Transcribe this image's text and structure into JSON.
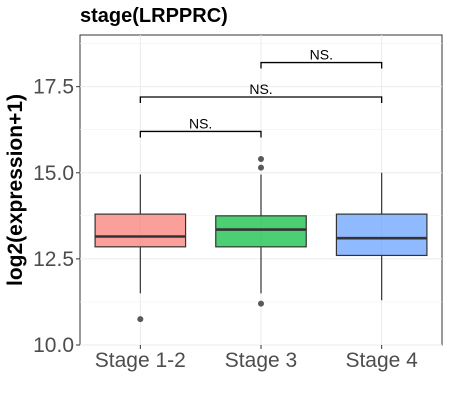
{
  "chart_data": {
    "type": "box",
    "title": "stage(LRPPRC)",
    "xlabel": "",
    "ylabel": "log2(expression+1)",
    "ylim": [
      10.0,
      19.0
    ],
    "yticks": [
      10.0,
      12.5,
      15.0,
      17.5
    ],
    "ytick_labels": [
      "10.0",
      "12.5",
      "15.0",
      "17.5"
    ],
    "grid": true,
    "legend": "none",
    "categories": [
      "Stage 1-2",
      "Stage 3",
      "Stage 4"
    ],
    "boxes": [
      {
        "category": "Stage 1-2",
        "color": "#F8766D",
        "whisker_low": 11.5,
        "q1": 12.85,
        "median": 13.15,
        "q3": 13.8,
        "whisker_high": 14.95,
        "outliers": [
          10.75
        ]
      },
      {
        "category": "Stage 3",
        "color": "#00BA38",
        "whisker_low": 11.5,
        "q1": 12.85,
        "median": 13.35,
        "q3": 13.75,
        "whisker_high": 14.95,
        "outliers": [
          11.2,
          15.15,
          15.4
        ]
      },
      {
        "category": "Stage 4",
        "color": "#619CFF",
        "whisker_low": 11.3,
        "q1": 12.6,
        "median": 13.1,
        "q3": 13.8,
        "whisker_high": 15.0,
        "outliers": []
      }
    ],
    "comparisons": [
      {
        "from": "Stage 1-2",
        "to": "Stage 3",
        "label": "NS.",
        "y": 16.2
      },
      {
        "from": "Stage 1-2",
        "to": "Stage 4",
        "label": "NS.",
        "y": 17.2
      },
      {
        "from": "Stage 3",
        "to": "Stage 4",
        "label": "NS.",
        "y": 18.2
      }
    ]
  }
}
